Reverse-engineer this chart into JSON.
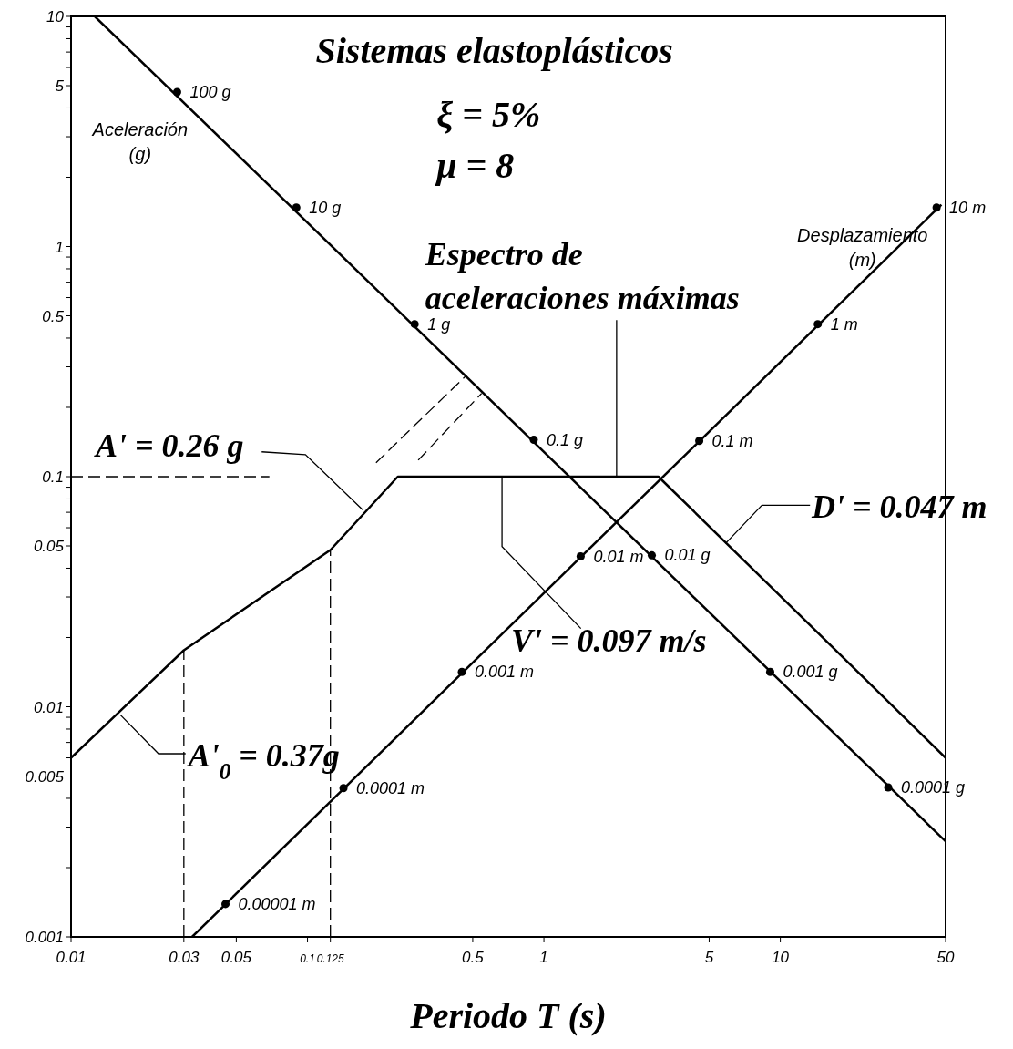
{
  "chart_data": {
    "type": "line",
    "title": "Sistemas elastoplásticos",
    "xlabel": "Periodo T (s)",
    "log": "xy",
    "xlim": [
      0.01,
      50
    ],
    "ylim": [
      0.001,
      10
    ],
    "xticks": [
      0.01,
      0.03,
      0.05,
      0.1,
      0.125,
      0.5,
      1,
      5,
      10,
      50
    ],
    "yticks": [
      0.001,
      {
        "value": 0.002,
        "label": null
      },
      {
        "value": 0.003,
        "label": null
      },
      {
        "value": 0.004,
        "label": null
      },
      0.005,
      {
        "value": 0.006,
        "label": null
      },
      {
        "value": 0.007,
        "label": null
      },
      {
        "value": 0.008,
        "label": null
      },
      {
        "value": 0.009,
        "label": null
      },
      0.01,
      {
        "value": 0.02,
        "label": null
      },
      {
        "value": 0.03,
        "label": null
      },
      {
        "value": 0.04,
        "label": null
      },
      0.05,
      {
        "value": 0.06,
        "label": null
      },
      {
        "value": 0.07,
        "label": null
      },
      {
        "value": 0.08,
        "label": null
      },
      {
        "value": 0.09,
        "label": null
      },
      0.1,
      {
        "value": 0.2,
        "label": null
      },
      {
        "value": 0.3,
        "label": null
      },
      {
        "value": 0.4,
        "label": null
      },
      0.5,
      {
        "value": 0.6,
        "label": null
      },
      {
        "value": 0.7,
        "label": null
      },
      {
        "value": 0.8,
        "label": null
      },
      {
        "value": 0.9,
        "label": null
      },
      1,
      {
        "value": 2,
        "label": null
      },
      {
        "value": 3,
        "label": null
      },
      {
        "value": 4,
        "label": null
      },
      5,
      {
        "value": 6,
        "label": null
      },
      {
        "value": 7,
        "label": null
      },
      {
        "value": 8,
        "label": null
      },
      {
        "value": 9,
        "label": null
      },
      10
    ],
    "series": [
      {
        "color": "#000000",
        "marker": "none",
        "line_style": "solid",
        "x": [
          0.01,
          0.03,
          0.125,
          0.241,
          3.05,
          50
        ],
        "values": [
          0.006,
          0.0176,
          0.048,
          0.1,
          0.1,
          0.006
        ]
      },
      {
        "color": "#000000",
        "marker": "none",
        "line_style": "solid",
        "x": [
          0.0126,
          50
        ],
        "values": [
          10,
          0.0026
        ]
      },
      {
        "color": "#000000",
        "marker": "none",
        "line_style": "solid",
        "x": [
          0.0325,
          48
        ],
        "values": [
          0.001,
          1.52
        ]
      },
      {
        "type": "scatter",
        "color": "#000000",
        "marker": "circle",
        "x": [
          0.0281,
          0.0897,
          0.284,
          0.906,
          2.86,
          9.06,
          28.6
        ],
        "values": [
          4.69,
          1.476,
          0.46,
          0.1446,
          0.0455,
          0.01417,
          0.00446
        ]
      },
      {
        "type": "scatter",
        "color": "#000000",
        "marker": "circle",
        "x": [
          45.8,
          14.4,
          4.54,
          1.43,
          0.45,
          0.142,
          0.045
        ],
        "values": [
          1.476,
          0.46,
          0.143,
          0.045,
          0.01417,
          0.00443,
          0.00139
        ]
      },
      {
        "color": "#000000",
        "marker": "none",
        "line_style": "dashed",
        "x": [
          0.01,
          0.069
        ],
        "values": [
          0.1,
          0.1
        ]
      },
      {
        "color": "#000000",
        "marker": "none",
        "line_style": "dashed",
        "x": [
          0.03,
          0.03
        ],
        "values": [
          0.001,
          0.0176
        ]
      },
      {
        "color": "#000000",
        "marker": "none",
        "line_style": "dashed",
        "x": [
          0.125,
          0.125
        ],
        "values": [
          0.001,
          0.048
        ]
      },
      {
        "color": "#000000",
        "marker": "none",
        "line_style": "dashed",
        "x": [
          0.195,
          0.471
        ],
        "values": [
          0.115,
          0.276
        ]
      },
      {
        "color": "#000000",
        "marker": "none",
        "line_style": "dashed",
        "x": [
          0.294,
          0.545
        ],
        "values": [
          0.118,
          0.23
        ]
      }
    ],
    "annotations": [
      "ξ = 5%",
      "μ = 8",
      {
        "text": "Espectro de aceleraciones máximas",
        "x": 2.03,
        "y": 0.1
      },
      {
        "text": "A' = 0.26 g",
        "x": 0.171,
        "y": 0.0718
      },
      {
        "text": "D' = 0.047 m",
        "x": 5.86,
        "y": 0.0512
      },
      {
        "text": "V' = 0.097 m/s",
        "x": 0.665,
        "y": 0.1
      },
      {
        "text": "A'$_{0}$ = 0.37g",
        "x": 0.0162,
        "y": 0.0092
      },
      "Aceleración (g)",
      "Desplazamiento (m)",
      {
        "text": "100 g",
        "x": 0.0281,
        "y": 4.69
      },
      {
        "text": "10 g",
        "x": 0.0897,
        "y": 1.476
      },
      {
        "text": "1 g",
        "x": 0.284,
        "y": 0.46
      },
      {
        "text": "0.1 g",
        "x": 0.906,
        "y": 0.1446
      },
      {
        "text": "0.01 g",
        "x": 2.86,
        "y": 0.0455
      },
      {
        "text": "0.001 g",
        "x": 9.06,
        "y": 0.01417
      },
      {
        "text": "0.0001 g",
        "x": 28.6,
        "y": 0.00446
      },
      {
        "text": "10 m",
        "x": 45.8,
        "y": 1.476
      },
      {
        "text": "1 m",
        "x": 14.4,
        "y": 0.46
      },
      {
        "text": "0.1 m",
        "x": 4.54,
        "y": 0.143
      },
      {
        "text": "0.01 m",
        "x": 1.43,
        "y": 0.045
      },
      {
        "text": "0.001 m",
        "x": 0.45,
        "y": 0.01417
      },
      {
        "text": "0.0001 m",
        "x": 0.142,
        "y": 0.00443
      },
      {
        "text": "0.00001 m",
        "x": 0.045,
        "y": 0.00139
      }
    ]
  }
}
